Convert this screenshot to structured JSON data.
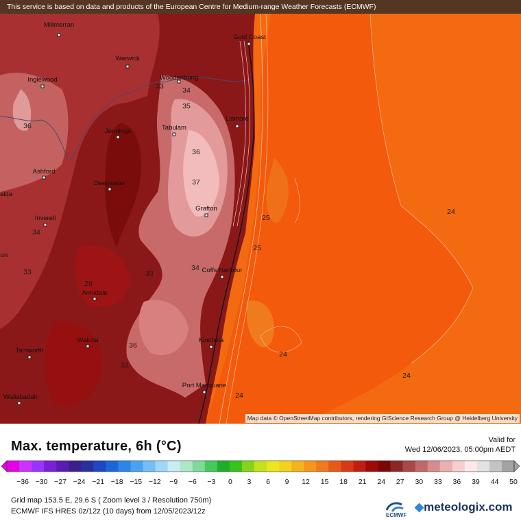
{
  "map": {
    "banner": "This service is based on data and products of the European Centre for Medium-range Weather Forecasts (ECMWF)",
    "attribution": "Map data © OpenStreetMap contributors, rendering GIScience Research Group @ Heidelberg University",
    "cities": [
      {
        "name": "Millmerran"
      },
      {
        "name": "Gold Coast"
      },
      {
        "name": "Warwick"
      },
      {
        "name": "Inglewood"
      },
      {
        "name": "Woodenbong"
      },
      {
        "name": "Tabulam"
      },
      {
        "name": "Lismore"
      },
      {
        "name": "Jennings"
      },
      {
        "name": "Ashford"
      },
      {
        "name": "Deepwater"
      },
      {
        "name": "Grafton"
      },
      {
        "name": "Inverell"
      },
      {
        "name": "Coffs Harbour"
      },
      {
        "name": "Armidale"
      },
      {
        "name": "Walcha"
      },
      {
        "name": "Kinchela"
      },
      {
        "name": "Tamworth"
      },
      {
        "name": "Port Macquarie"
      },
      {
        "name": "Wallabadah"
      },
      {
        "name": "alda"
      },
      {
        "name": "on"
      }
    ],
    "contour_labels": [
      "36",
      "33",
      "34",
      "35",
      "36",
      "37",
      "25",
      "25",
      "24",
      "34",
      "33",
      "34",
      "29",
      "36",
      "24",
      "24",
      "24",
      "33",
      "32"
    ]
  },
  "legend": {
    "title": "Max. temperature, 6h (°C)",
    "valid_label": "Valid for",
    "valid_date": "Wed 12/06/2023, 05:00pm AEDT",
    "ticks": [
      "−36",
      "−30",
      "−27",
      "−24",
      "−21",
      "−18",
      "−15",
      "−12",
      "−9",
      "−6",
      "−3",
      "0",
      "3",
      "6",
      "9",
      "12",
      "15",
      "18",
      "21",
      "24",
      "27",
      "30",
      "33",
      "36",
      "39",
      "44",
      "50"
    ],
    "colors": [
      "#e600e6",
      "#cc33ff",
      "#9a33ff",
      "#7a1fd6",
      "#5a1bb0",
      "#3c1e8c",
      "#2a2f9e",
      "#1f47c4",
      "#1e66d8",
      "#2a86e8",
      "#4aa3f0",
      "#73bff4",
      "#9fd8f6",
      "#c8ecf4",
      "#aee6c8",
      "#7fd99a",
      "#45c85c",
      "#1fae2a",
      "#38c21a",
      "#86d41a",
      "#c6e01e",
      "#ece61e",
      "#f4d21e",
      "#f4b41e",
      "#f4961e",
      "#ef7a1e",
      "#e85a1a",
      "#d93a14",
      "#c01e10",
      "#9e0a0a",
      "#7a0606",
      "#8a2828",
      "#a84848",
      "#c06868",
      "#d68c8c",
      "#eab0b0",
      "#f6d0d0",
      "#ffe8e8",
      "#e2e2e2",
      "#c4c4c4",
      "#a2a2a2"
    ]
  },
  "footer": {
    "grid_info": "Grid map 153.5 E, 29.6 S ( Zoom level 3 / Resolution 750m)",
    "model_info": "ECMWF IFS HRES 0z/12z (10 days) from 12/05/2023/12z",
    "ecmwf_logo": "ECMWF",
    "brand": "meteologix.com"
  }
}
